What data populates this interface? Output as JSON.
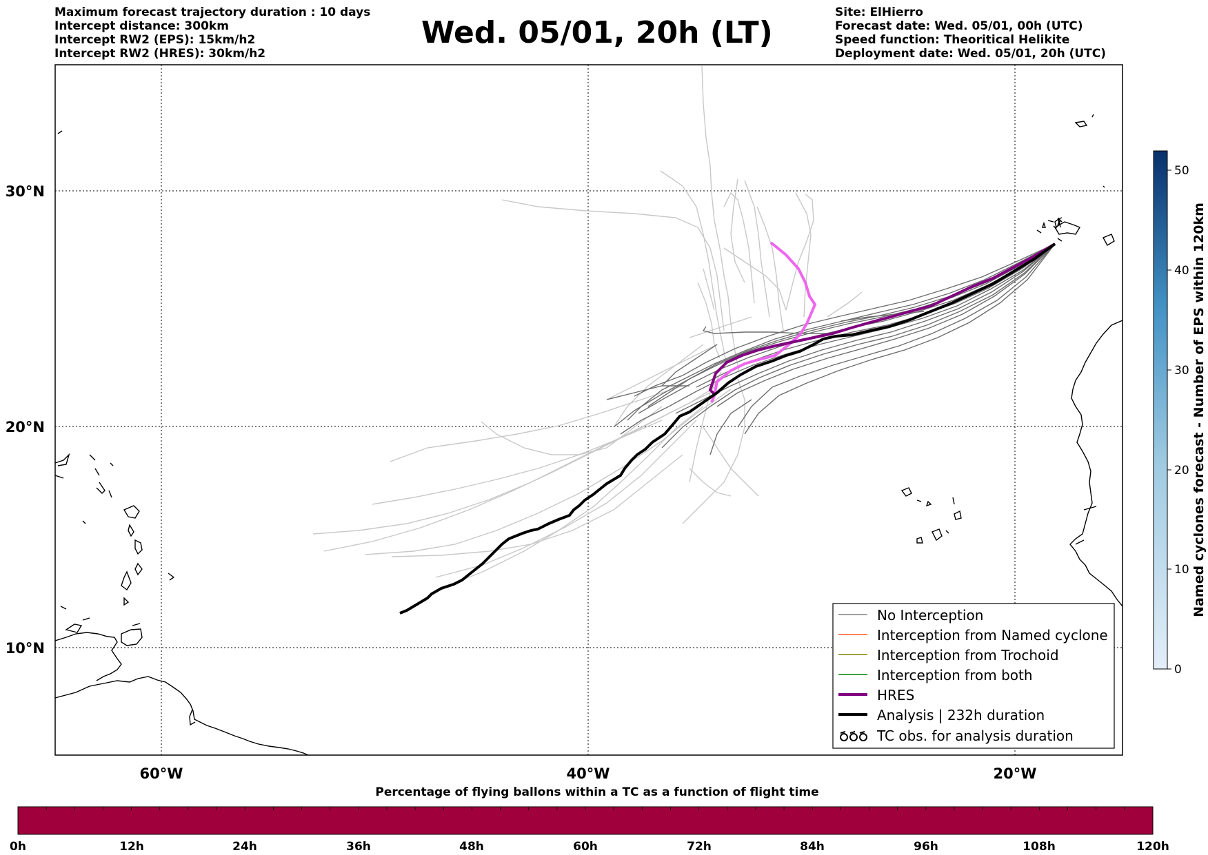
{
  "header": {
    "left_lines": [
      "Maximum forecast trajectory duration : 10 days",
      "Intercept distance: 300km",
      "Intercept RW2 (EPS):  15km/h2",
      "Intercept RW2 (HRES): 30km/h2"
    ],
    "title": "Wed. 05/01, 20h (LT)",
    "right_lines": [
      "Site: ElHierro",
      "Forecast date: Wed. 05/01, 00h (UTC)",
      "Speed function: Theoritical Helikite",
      "Deployment date: Wed. 05/01, 20h (UTC)"
    ]
  },
  "map": {
    "lon_labels": [
      "60°W",
      "40°W",
      "20°W"
    ],
    "lat_labels": [
      "30°N",
      "20°N",
      "10°N"
    ],
    "colors": {
      "no_interception": "#808080",
      "named_cyclone": "#ff5a1f",
      "trochoid": "#808000",
      "both": "#008000",
      "hres": "#800080",
      "hres_late": "#ee66ee",
      "analysis": "#000000",
      "light_members": "#c8c8c8"
    }
  },
  "legend": {
    "items": [
      {
        "label": "No Interception",
        "icon": "thin-gray-line"
      },
      {
        "label": "Interception from Named cyclone",
        "icon": "thin-orange-line"
      },
      {
        "label": "Interception from Trochoid",
        "icon": "thin-olive-line"
      },
      {
        "label": "Interception from both",
        "icon": "thin-green-line"
      },
      {
        "label": "HRES",
        "icon": "thick-purple-line"
      },
      {
        "label": "Analysis | 232h duration",
        "icon": "thick-black-line"
      },
      {
        "label": "TC obs. for analysis duration",
        "icon": "cyclone-symbols-icon"
      }
    ]
  },
  "colorbar": {
    "label": "Named cyclones forecast - Number of EPS within 120km",
    "ticks": [
      "0",
      "10",
      "20",
      "30",
      "40",
      "50"
    ],
    "color_low": "#e3eef9",
    "color_high": "#08306b"
  },
  "timebar": {
    "title": "Percentage of flying ballons within a TC as a function of flight time",
    "ticks": [
      "0h",
      "12h",
      "24h",
      "36h",
      "48h",
      "60h",
      "72h",
      "84h",
      "96h",
      "108h",
      "120h"
    ],
    "color": "#a0003c"
  }
}
